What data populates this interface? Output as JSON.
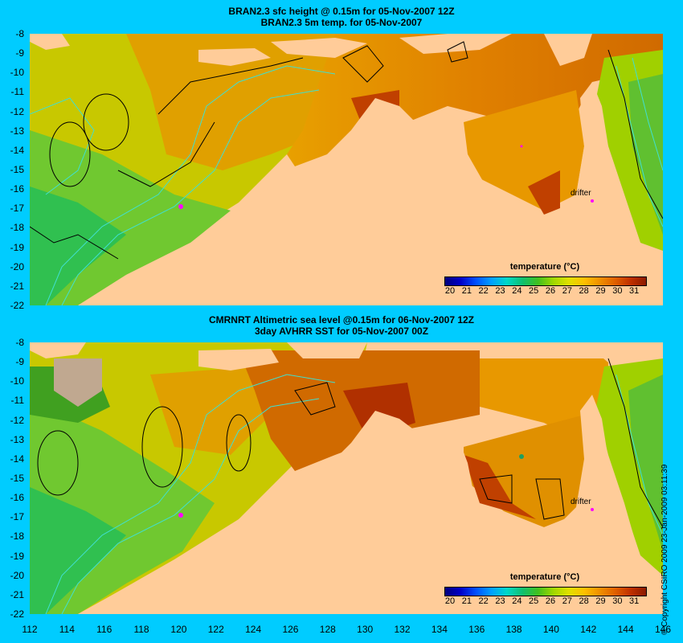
{
  "top_panel": {
    "title_line1": "BRAN2.3 sfc height @ 0.15m for 05-Nov-2007 12Z",
    "title_line2": "BRAN2.3 5m temp. for 05-Nov-2007",
    "drifter_label": "drifter",
    "colorbar_title": "temperature (°C)"
  },
  "bottom_panel": {
    "title_line1": "CMRNRT Altimetric sea level  @0.15m  for 06-Nov-2007 12Z",
    "title_line2": "3day AVHRR SST for 05-Nov-2007 00Z",
    "drifter_label": "drifter",
    "colorbar_title": "temperature (°C)"
  },
  "y_ticks": [
    "-8",
    "-9",
    "-10",
    "-11",
    "-12",
    "-13",
    "-14",
    "-15",
    "-16",
    "-17",
    "-18",
    "-19",
    "-20",
    "-21",
    "-22"
  ],
  "x_ticks": [
    "112",
    "114",
    "116",
    "118",
    "120",
    "122",
    "124",
    "126",
    "128",
    "130",
    "132",
    "134",
    "136",
    "138",
    "140",
    "142",
    "144",
    "146"
  ],
  "colorbar_ticks": [
    "20",
    "21",
    "22",
    "23",
    "24",
    "25",
    "26",
    "27",
    "28",
    "29",
    "30",
    "31"
  ],
  "colorbar_colors": [
    "#00007f",
    "#0000c8",
    "#0050ff",
    "#00a0ff",
    "#00d8c8",
    "#10c070",
    "#40c020",
    "#a0d800",
    "#e0e000",
    "#ffc000",
    "#f09000",
    "#e06000",
    "#c03000",
    "#8b1a00"
  ],
  "copyright": "© Copyright CSIRO 2009   23-Jan-2009 03:11:39",
  "colors": {
    "background": "#00ccff",
    "land": "#ffcc99",
    "contour": "#40e0d0",
    "ssh_contour": "#000000",
    "drifter": "#ff00ff"
  }
}
